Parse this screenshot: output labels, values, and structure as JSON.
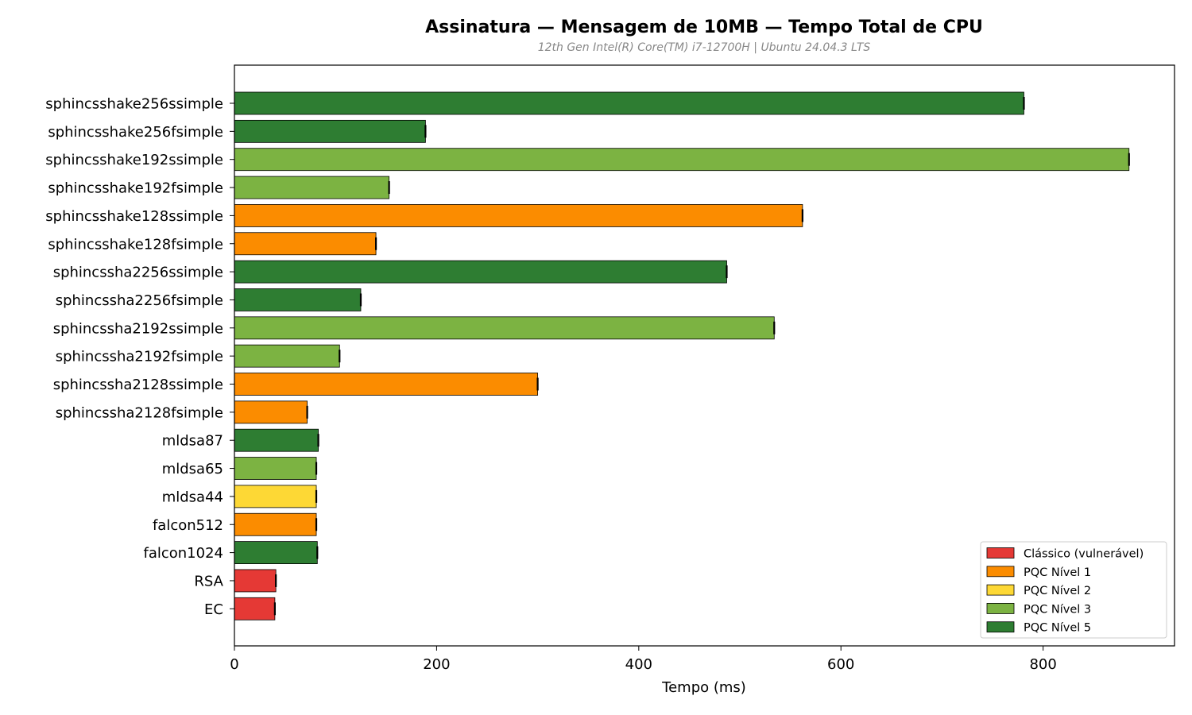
{
  "chart_data": {
    "type": "bar",
    "orientation": "horizontal",
    "title": "Assinatura — Mensagem de 10MB — Tempo Total de CPU",
    "subtitle": "12th Gen Intel(R) Core(TM) i7-12700H | Ubuntu 24.04.3 LTS",
    "xlabel": "Tempo (ms)",
    "ylabel": "",
    "xlim": [
      0,
      930
    ],
    "xticks": [
      0,
      200,
      400,
      600,
      800
    ],
    "grid": false,
    "legend_position": "lower-right",
    "categories": [
      "sphincsshake256ssimple",
      "sphincsshake256fsimple",
      "sphincsshake192ssimple",
      "sphincsshake192fsimple",
      "sphincsshake128ssimple",
      "sphincsshake128fsimple",
      "sphincssha2256ssimple",
      "sphincssha2256fsimple",
      "sphincssha2192ssimple",
      "sphincssha2192fsimple",
      "sphincssha2128ssimple",
      "sphincssha2128fsimple",
      "mldsa87",
      "mldsa65",
      "mldsa44",
      "falcon512",
      "falcon1024",
      "RSA",
      "EC"
    ],
    "values": [
      781,
      189,
      885,
      153,
      562,
      140,
      487,
      125,
      534,
      104,
      300,
      72,
      83,
      81,
      81,
      81,
      82,
      41,
      40
    ],
    "groups": [
      "nivel5",
      "nivel5",
      "nivel3",
      "nivel3",
      "nivel1",
      "nivel1",
      "nivel5",
      "nivel5",
      "nivel3",
      "nivel3",
      "nivel1",
      "nivel1",
      "nivel5",
      "nivel3",
      "nivel2",
      "nivel1",
      "nivel5",
      "classico",
      "classico"
    ],
    "legend": [
      {
        "key": "classico",
        "label": "Clássico (vulnerável)",
        "color": "#e53935"
      },
      {
        "key": "nivel1",
        "label": "PQC Nível 1",
        "color": "#fb8c00"
      },
      {
        "key": "nivel2",
        "label": "PQC Nível 2",
        "color": "#fdd835"
      },
      {
        "key": "nivel3",
        "label": "PQC Nível 3",
        "color": "#7cb342"
      },
      {
        "key": "nivel5",
        "label": "PQC Nível 5",
        "color": "#2e7d32"
      }
    ]
  }
}
